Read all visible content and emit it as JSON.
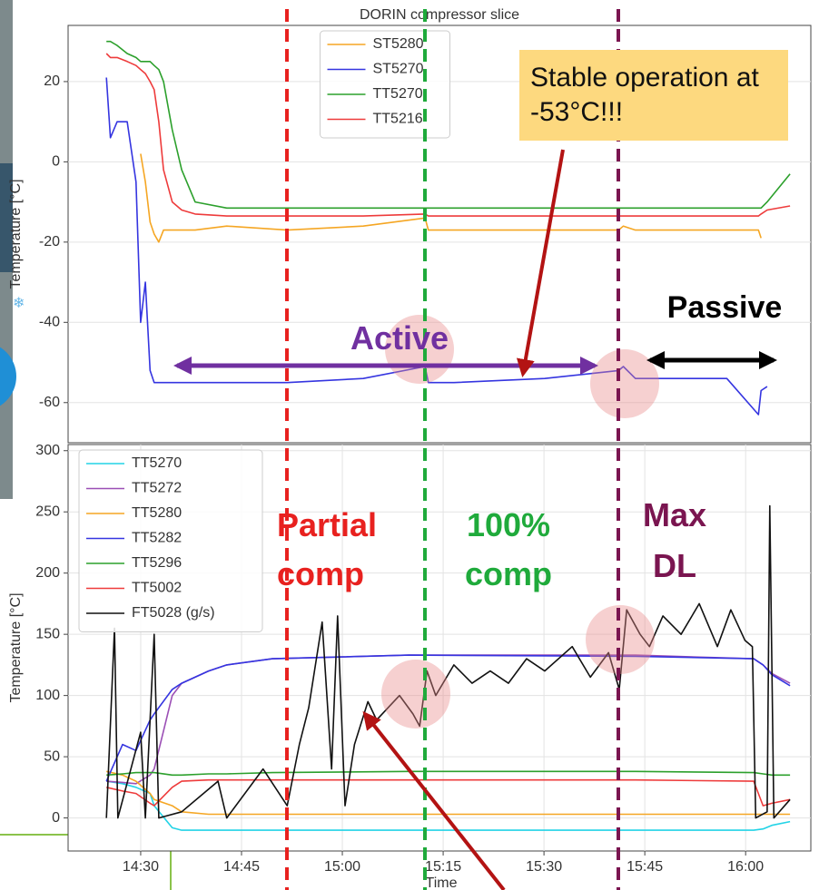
{
  "chart_data": [
    {
      "type": "line",
      "title": "DORIN compressor slice",
      "ylabel": "Temperature [°C]",
      "xlim": [
        859.2,
        969.7
      ],
      "ylim": [
        -70,
        34
      ],
      "yticks": [
        -60,
        -40,
        -20,
        0,
        20
      ],
      "grid": true,
      "legend": "upper center",
      "x": [
        864.9,
        865.5,
        866.5,
        868.0,
        869.3,
        870.0,
        870.7,
        871.4,
        872.0,
        872.7,
        873.4,
        874.7,
        876.1,
        878.1,
        882.8,
        891.8,
        903.1,
        912.3,
        912.8,
        916.6,
        930.1,
        941.1,
        941.8,
        943.6,
        957.2,
        961.9,
        962.3,
        963.2,
        966.6
      ],
      "series": [
        {
          "name": "ST5280",
          "color": "#f5a623",
          "values": [
            null,
            null,
            null,
            null,
            null,
            2,
            -5,
            -15,
            -18,
            -20,
            -17,
            -17,
            -17,
            -17,
            -16,
            -17,
            -16,
            -14,
            -17,
            -17,
            -17,
            -17,
            -16,
            -17,
            -17,
            -17,
            -19,
            null,
            null
          ]
        },
        {
          "name": "ST5270",
          "color": "#3535e0",
          "values": [
            21,
            6,
            10,
            10,
            -5,
            -40,
            -30,
            -52,
            -55,
            -55,
            -55,
            -55,
            -55,
            -55,
            -55,
            -55,
            -54,
            -51,
            -55,
            -55,
            -54,
            -52,
            -51,
            -54,
            -54,
            -63,
            -57,
            -56,
            null
          ]
        },
        {
          "name": "TT5270",
          "color": "#2ca02c",
          "values": [
            30,
            30,
            29,
            27,
            26,
            25,
            25,
            25,
            24,
            23,
            20,
            8,
            -2,
            -10,
            -11.5,
            -11.5,
            -11.5,
            -11.5,
            -11.5,
            -11.5,
            -11.5,
            -11.5,
            -11.5,
            -11.5,
            -11.5,
            -11.5,
            -11.5,
            -10,
            -3
          ]
        },
        {
          "name": "TT5216",
          "color": "#ee3b3b",
          "values": [
            27,
            26,
            26,
            25,
            24,
            23,
            22,
            20,
            18,
            10,
            -2,
            -10,
            -12,
            -13,
            -13.5,
            -13.5,
            -13.5,
            -13,
            -13.5,
            -13.5,
            -13.5,
            -13.5,
            -13.5,
            -13.5,
            -13.5,
            -13.5,
            -13,
            -12,
            -11
          ]
        }
      ],
      "annotations": [
        "Stable operation at -53°C!!!",
        "Active",
        "Passive"
      ]
    },
    {
      "type": "line",
      "xlabel": "Time",
      "ylabel": "Temperature [°C]",
      "xlim": [
        859.2,
        969.7
      ],
      "ylim": [
        -27,
        305
      ],
      "yticks": [
        0,
        50,
        100,
        150,
        200,
        250,
        300
      ],
      "grid": true,
      "legend": "upper left",
      "xticks": [
        {
          "value": 870,
          "label": "14:30"
        },
        {
          "value": 885,
          "label": "14:45"
        },
        {
          "value": 900,
          "label": "15:00"
        },
        {
          "value": 915,
          "label": "15:15"
        },
        {
          "value": 930,
          "label": "15:30"
        },
        {
          "value": 945,
          "label": "15:45"
        },
        {
          "value": 960,
          "label": "16:00"
        }
      ],
      "x": [
        864.9,
        867.3,
        869.3,
        871.4,
        872.0,
        874.7,
        876.1,
        880.1,
        882.8,
        889.6,
        909.9,
        943.6,
        961.2,
        962.6,
        963.9,
        966.6
      ],
      "series": [
        {
          "name": "TT5270",
          "color": "#22d3e6",
          "values": [
            30,
            28,
            25,
            20,
            10,
            -8,
            -10,
            -10,
            -10,
            -10,
            -10,
            -10,
            -10,
            -9,
            -6,
            -3
          ]
        },
        {
          "name": "TT5272",
          "color": "#9b4fb5",
          "values": [
            30,
            29,
            28,
            35,
            40,
            100,
            110,
            120,
            125,
            130,
            133,
            133,
            130,
            125,
            118,
            110
          ]
        },
        {
          "name": "TT5280",
          "color": "#f5a623",
          "values": [
            38,
            35,
            30,
            20,
            15,
            10,
            5,
            3,
            3,
            3,
            3,
            3,
            3,
            3,
            3,
            3
          ]
        },
        {
          "name": "TT5282",
          "color": "#3535e0",
          "values": [
            30,
            60,
            55,
            80,
            85,
            105,
            110,
            120,
            125,
            130,
            133,
            132,
            130,
            125,
            117,
            108
          ]
        },
        {
          "name": "TT5296",
          "color": "#2ca02c",
          "values": [
            35,
            36,
            37,
            37,
            37,
            35,
            35,
            36,
            36,
            37,
            38,
            38,
            37,
            36,
            35,
            35
          ]
        },
        {
          "name": "TT5002",
          "color": "#ee3b3b",
          "values": [
            25,
            22,
            20,
            12,
            10,
            25,
            30,
            31,
            31,
            31,
            31,
            31,
            30,
            10,
            12,
            15
          ]
        },
        {
          "name": "FT5028 (g/s)",
          "color": "#111111",
          "x": [
            864.9,
            866.1,
            866.6,
            870,
            870.7,
            872,
            872.7,
            876.1,
            881.5,
            882.8,
            888.2,
            891.8,
            893.6,
            895,
            897,
            898.4,
            899.3,
            900.4,
            901.8,
            903.8,
            905.1,
            908.5,
            910.5,
            911.5,
            912.6,
            913.9,
            916.6,
            919.3,
            922,
            924.7,
            927.4,
            930.1,
            934.2,
            936.9,
            939.6,
            941.2,
            942.3,
            944.3,
            945.7,
            947.7,
            950.4,
            953.1,
            955.8,
            957.8,
            959.9,
            961,
            961.5,
            963.2,
            963.6,
            964.2,
            966.6
          ],
          "values": [
            0,
            155,
            0,
            70,
            0,
            150,
            0,
            5,
            30,
            0,
            40,
            10,
            60,
            90,
            160,
            40,
            165,
            10,
            60,
            95,
            80,
            100,
            85,
            75,
            120,
            100,
            125,
            110,
            120,
            110,
            130,
            120,
            140,
            115,
            135,
            105,
            170,
            150,
            140,
            165,
            150,
            175,
            140,
            170,
            145,
            140,
            0,
            5,
            255,
            0,
            15
          ]
        }
      ],
      "annotations": [
        "Partial comp",
        "100% comp",
        "Max DL"
      ]
    }
  ]
}
